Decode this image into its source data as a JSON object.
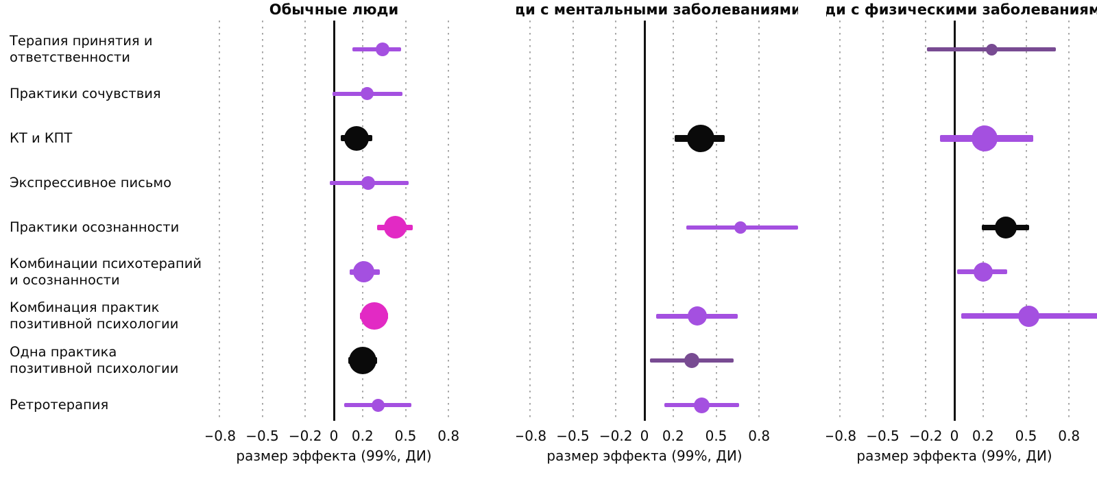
{
  "chart_data": {
    "type": "scatter",
    "subtype": "forest-plot-dot-ci",
    "x_axis": {
      "label": "размер эффекта (99%, ДИ)",
      "ticks": [
        -0.8,
        -0.5,
        -0.2,
        0,
        0.2,
        0.5,
        0.8
      ],
      "tick_labels": [
        "−0.8",
        "−0.5",
        "−0.2",
        "0",
        "0.2",
        "0.5",
        "0.8"
      ],
      "gridlines": [
        -0.8,
        -0.5,
        -0.2,
        0.2,
        0.5,
        0.8
      ],
      "zero_reference_line": true
    },
    "categories": [
      "Терапия принятия и\nответственности",
      "Практики сочувствия",
      "КТ и КПТ",
      "Экспрессивное письмо",
      "Практики осознанности",
      "Комбинации психотерапий\nи осознанности",
      "Комбинация практик\nпозитивной психологии",
      "Одна практика\nпозитивной психологии",
      "Ретротерапия"
    ],
    "colors": {
      "violet": "#a450e0",
      "magenta": "#e22ac4",
      "black": "#0a0a0a",
      "plum": "#784b92",
      "grid": "#a6a6a6",
      "axis": "#111111"
    },
    "panels": [
      {
        "title": "Обычные люди",
        "points": [
          {
            "row": 0,
            "est": 0.34,
            "lo": 0.13,
            "hi": 0.47,
            "size": 20,
            "color": "violet"
          },
          {
            "row": 1,
            "est": 0.23,
            "lo": -0.01,
            "hi": 0.48,
            "size": 19,
            "color": "violet"
          },
          {
            "row": 2,
            "est": 0.16,
            "lo": 0.05,
            "hi": 0.27,
            "size": 36,
            "color": "black"
          },
          {
            "row": 3,
            "est": 0.24,
            "lo": -0.03,
            "hi": 0.52,
            "size": 20,
            "color": "violet"
          },
          {
            "row": 4,
            "est": 0.43,
            "lo": 0.3,
            "hi": 0.55,
            "size": 33,
            "color": "magenta"
          },
          {
            "row": 5,
            "est": 0.21,
            "lo": 0.11,
            "hi": 0.32,
            "size": 31,
            "color": "violet"
          },
          {
            "row": 6,
            "est": 0.28,
            "lo": 0.18,
            "hi": 0.38,
            "size": 40,
            "color": "magenta"
          },
          {
            "row": 7,
            "est": 0.2,
            "lo": 0.1,
            "hi": 0.3,
            "size": 40,
            "color": "black"
          },
          {
            "row": 8,
            "est": 0.31,
            "lo": 0.07,
            "hi": 0.54,
            "size": 19,
            "color": "violet"
          }
        ]
      },
      {
        "title": "Люди с ментальными заболеваниями",
        "points": [
          {
            "row": 2,
            "est": 0.39,
            "lo": 0.21,
            "hi": 0.56,
            "size": 40,
            "color": "black"
          },
          {
            "row": 4,
            "est": 0.67,
            "lo": 0.29,
            "hi": 1.07,
            "size": 18,
            "color": "violet"
          },
          {
            "row": 6,
            "est": 0.37,
            "lo": 0.08,
            "hi": 0.65,
            "size": 28,
            "color": "violet"
          },
          {
            "row": 7,
            "est": 0.33,
            "lo": 0.04,
            "hi": 0.62,
            "size": 22,
            "color": "plum"
          },
          {
            "row": 8,
            "est": 0.4,
            "lo": 0.14,
            "hi": 0.66,
            "size": 23,
            "color": "violet"
          }
        ]
      },
      {
        "title": "Люди с физическими заболеваниями",
        "points": [
          {
            "row": 0,
            "est": 0.26,
            "lo": -0.19,
            "hi": 0.71,
            "size": 17,
            "color": "plum"
          },
          {
            "row": 2,
            "est": 0.21,
            "lo": -0.1,
            "hi": 0.55,
            "size": 38,
            "color": "violet"
          },
          {
            "row": 4,
            "est": 0.36,
            "lo": 0.19,
            "hi": 0.52,
            "size": 32,
            "color": "black"
          },
          {
            "row": 5,
            "est": 0.2,
            "lo": 0.02,
            "hi": 0.37,
            "size": 28,
            "color": "violet"
          },
          {
            "row": 6,
            "est": 0.52,
            "lo": 0.05,
            "hi": 1.2,
            "size": 31,
            "color": "violet",
            "hi_clipped": true
          }
        ]
      }
    ]
  }
}
